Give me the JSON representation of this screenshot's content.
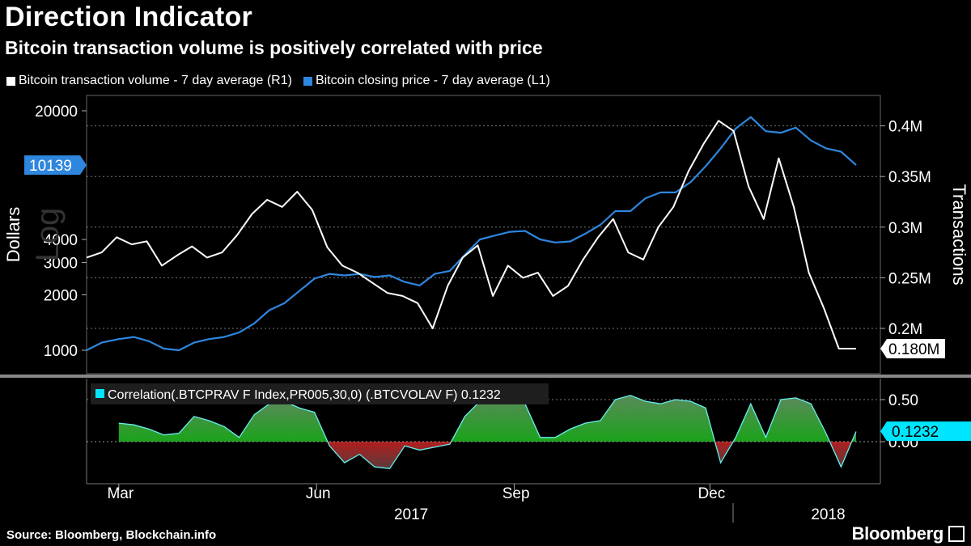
{
  "title": "Direction Indicator",
  "subtitle": "Bitcoin transaction volume is positively correlated with price",
  "legend": [
    {
      "label": "Bitcoin transaction volume - 7 day average (R1)",
      "color": "#ffffff"
    },
    {
      "label": "Bitcoin closing price - 7 day average (L1)",
      "color": "#2e86de"
    }
  ],
  "footer": {
    "source": "Source: Bloomberg, Blockchain.info",
    "brand": "Bloomberg"
  },
  "colors": {
    "price": "#2e86de",
    "volume": "#ffffff",
    "positive": "#1aa31a",
    "negative": "#b01e1e",
    "correlation_line": "#66f0f0",
    "grid": "#777777"
  },
  "chart_data": [
    {
      "type": "line",
      "left_axis": {
        "label": "Dollars",
        "watermark": "Log",
        "scale": "log",
        "ticks": [
          1000,
          2000,
          3000,
          4000,
          20000
        ],
        "current_value_label": "10139",
        "current_value": 10139
      },
      "right_axis": {
        "label": "Transactions",
        "ticks": [
          0.2,
          0.25,
          0.3,
          0.35,
          0.4
        ],
        "tick_labels": [
          "0.2M",
          "0.25M",
          "0.3M",
          "0.35M",
          "0.4M"
        ],
        "current_value_label": "0.180M",
        "current_value": 0.18
      },
      "x_axis": {
        "range": [
          "2017-02-14",
          "2018-02-07"
        ],
        "month_labels": [
          {
            "date": "2017-03-01",
            "label": "Mar"
          },
          {
            "date": "2017-06-01",
            "label": "Jun"
          },
          {
            "date": "2017-09-01",
            "label": "Sep"
          },
          {
            "date": "2017-12-01",
            "label": "Dec"
          }
        ],
        "year_labels": [
          {
            "date": "2017-07-15",
            "label": "2017"
          },
          {
            "date": "2018-01-25",
            "label": "2018"
          }
        ]
      },
      "series": [
        {
          "name": "Bitcoin closing price - 7 day average (L1)",
          "axis": "left",
          "points": [
            [
              "2017-02-14",
              1000
            ],
            [
              "2017-02-21",
              1100
            ],
            [
              "2017-03-01",
              1150
            ],
            [
              "2017-03-08",
              1180
            ],
            [
              "2017-03-15",
              1120
            ],
            [
              "2017-03-22",
              1020
            ],
            [
              "2017-03-29",
              1000
            ],
            [
              "2017-04-05",
              1100
            ],
            [
              "2017-04-12",
              1150
            ],
            [
              "2017-04-19",
              1180
            ],
            [
              "2017-04-26",
              1250
            ],
            [
              "2017-05-03",
              1400
            ],
            [
              "2017-05-10",
              1650
            ],
            [
              "2017-05-17",
              1800
            ],
            [
              "2017-05-24",
              2100
            ],
            [
              "2017-05-31",
              2450
            ],
            [
              "2017-06-07",
              2600
            ],
            [
              "2017-06-14",
              2550
            ],
            [
              "2017-06-21",
              2600
            ],
            [
              "2017-06-28",
              2500
            ],
            [
              "2017-07-05",
              2550
            ],
            [
              "2017-07-12",
              2350
            ],
            [
              "2017-07-19",
              2250
            ],
            [
              "2017-07-26",
              2600
            ],
            [
              "2017-08-02",
              2700
            ],
            [
              "2017-08-09",
              3300
            ],
            [
              "2017-08-16",
              4000
            ],
            [
              "2017-08-23",
              4200
            ],
            [
              "2017-08-30",
              4400
            ],
            [
              "2017-09-06",
              4450
            ],
            [
              "2017-09-13",
              4000
            ],
            [
              "2017-09-20",
              3850
            ],
            [
              "2017-09-27",
              3900
            ],
            [
              "2017-10-04",
              4300
            ],
            [
              "2017-10-11",
              4800
            ],
            [
              "2017-10-18",
              5700
            ],
            [
              "2017-10-25",
              5700
            ],
            [
              "2017-11-01",
              6700
            ],
            [
              "2017-11-08",
              7200
            ],
            [
              "2017-11-15",
              7200
            ],
            [
              "2017-11-22",
              8200
            ],
            [
              "2017-11-29",
              10000
            ],
            [
              "2017-12-06",
              12500
            ],
            [
              "2017-12-13",
              16000
            ],
            [
              "2017-12-20",
              18500
            ],
            [
              "2017-12-27",
              15500
            ],
            [
              "2018-01-03",
              15200
            ],
            [
              "2018-01-10",
              16200
            ],
            [
              "2018-01-17",
              13800
            ],
            [
              "2018-01-24",
              12500
            ],
            [
              "2018-01-31",
              12000
            ],
            [
              "2018-02-07",
              10139
            ]
          ]
        },
        {
          "name": "Bitcoin transaction volume - 7 day average (R1)",
          "axis": "right",
          "unit": "M",
          "points": [
            [
              "2017-02-14",
              0.27
            ],
            [
              "2017-02-21",
              0.275
            ],
            [
              "2017-02-28",
              0.29
            ],
            [
              "2017-03-07",
              0.283
            ],
            [
              "2017-03-14",
              0.286
            ],
            [
              "2017-03-21",
              0.262
            ],
            [
              "2017-03-28",
              0.272
            ],
            [
              "2017-04-04",
              0.281
            ],
            [
              "2017-04-11",
              0.27
            ],
            [
              "2017-04-18",
              0.275
            ],
            [
              "2017-04-25",
              0.292
            ],
            [
              "2017-05-02",
              0.313
            ],
            [
              "2017-05-09",
              0.327
            ],
            [
              "2017-05-16",
              0.32
            ],
            [
              "2017-05-23",
              0.335
            ],
            [
              "2017-05-30",
              0.317
            ],
            [
              "2017-06-06",
              0.28
            ],
            [
              "2017-06-13",
              0.262
            ],
            [
              "2017-06-20",
              0.255
            ],
            [
              "2017-06-27",
              0.245
            ],
            [
              "2017-07-04",
              0.235
            ],
            [
              "2017-07-11",
              0.232
            ],
            [
              "2017-07-18",
              0.225
            ],
            [
              "2017-07-25",
              0.2
            ],
            [
              "2017-08-01",
              0.242
            ],
            [
              "2017-08-08",
              0.27
            ],
            [
              "2017-08-15",
              0.282
            ],
            [
              "2017-08-22",
              0.232
            ],
            [
              "2017-08-29",
              0.262
            ],
            [
              "2017-09-05",
              0.25
            ],
            [
              "2017-09-12",
              0.255
            ],
            [
              "2017-09-19",
              0.232
            ],
            [
              "2017-09-26",
              0.242
            ],
            [
              "2017-10-03",
              0.268
            ],
            [
              "2017-10-10",
              0.29
            ],
            [
              "2017-10-17",
              0.308
            ],
            [
              "2017-10-24",
              0.275
            ],
            [
              "2017-10-31",
              0.268
            ],
            [
              "2017-11-07",
              0.3
            ],
            [
              "2017-11-14",
              0.32
            ],
            [
              "2017-11-21",
              0.355
            ],
            [
              "2017-11-28",
              0.382
            ],
            [
              "2017-12-05",
              0.405
            ],
            [
              "2017-12-12",
              0.395
            ],
            [
              "2017-12-19",
              0.34
            ],
            [
              "2017-12-26",
              0.308
            ],
            [
              "2018-01-02",
              0.368
            ],
            [
              "2018-01-09",
              0.32
            ],
            [
              "2018-01-16",
              0.255
            ],
            [
              "2018-01-23",
              0.22
            ],
            [
              "2018-01-30",
              0.18
            ],
            [
              "2018-02-07",
              0.18
            ]
          ]
        }
      ]
    },
    {
      "type": "area",
      "label": "Correlation(.BTCPRAV F Index,PR005,30,0) (.BTCVOLAV F) 0.1232",
      "label_color": "#00e5ff",
      "right_axis": {
        "ticks": [
          0.0,
          0.5
        ],
        "tick_labels": [
          "0.00",
          "0.50"
        ],
        "current_value_label": "0.1232",
        "current_value": 0.1232
      },
      "series": [
        {
          "name": "Correlation",
          "axis": "right",
          "points": [
            [
              "2017-03-01",
              0.22
            ],
            [
              "2017-03-08",
              0.2
            ],
            [
              "2017-03-15",
              0.15
            ],
            [
              "2017-03-22",
              0.08
            ],
            [
              "2017-03-29",
              0.1
            ],
            [
              "2017-04-05",
              0.3
            ],
            [
              "2017-04-12",
              0.25
            ],
            [
              "2017-04-19",
              0.18
            ],
            [
              "2017-04-26",
              0.05
            ],
            [
              "2017-05-03",
              0.32
            ],
            [
              "2017-05-10",
              0.45
            ],
            [
              "2017-05-17",
              0.48
            ],
            [
              "2017-05-24",
              0.4
            ],
            [
              "2017-05-31",
              0.35
            ],
            [
              "2017-06-07",
              -0.05
            ],
            [
              "2017-06-14",
              -0.25
            ],
            [
              "2017-06-21",
              -0.15
            ],
            [
              "2017-06-28",
              -0.3
            ],
            [
              "2017-07-05",
              -0.32
            ],
            [
              "2017-07-12",
              -0.05
            ],
            [
              "2017-07-19",
              -0.1
            ],
            [
              "2017-08-02",
              -0.03
            ],
            [
              "2017-08-09",
              0.3
            ],
            [
              "2017-08-16",
              0.48
            ],
            [
              "2017-08-23",
              0.52
            ],
            [
              "2017-08-30",
              0.5
            ],
            [
              "2017-09-06",
              0.45
            ],
            [
              "2017-09-13",
              0.05
            ],
            [
              "2017-09-20",
              0.05
            ],
            [
              "2017-09-27",
              0.15
            ],
            [
              "2017-10-04",
              0.22
            ],
            [
              "2017-10-11",
              0.25
            ],
            [
              "2017-10-18",
              0.5
            ],
            [
              "2017-10-25",
              0.55
            ],
            [
              "2017-11-01",
              0.48
            ],
            [
              "2017-11-08",
              0.45
            ],
            [
              "2017-11-15",
              0.5
            ],
            [
              "2017-11-22",
              0.48
            ],
            [
              "2017-11-29",
              0.4
            ],
            [
              "2017-12-06",
              -0.25
            ],
            [
              "2017-12-13",
              0.05
            ],
            [
              "2017-12-20",
              0.45
            ],
            [
              "2017-12-27",
              0.05
            ],
            [
              "2018-01-03",
              0.5
            ],
            [
              "2018-01-10",
              0.52
            ],
            [
              "2018-01-17",
              0.45
            ],
            [
              "2018-01-24",
              0.1
            ],
            [
              "2018-01-31",
              -0.3
            ],
            [
              "2018-02-07",
              0.12
            ]
          ]
        }
      ]
    }
  ]
}
